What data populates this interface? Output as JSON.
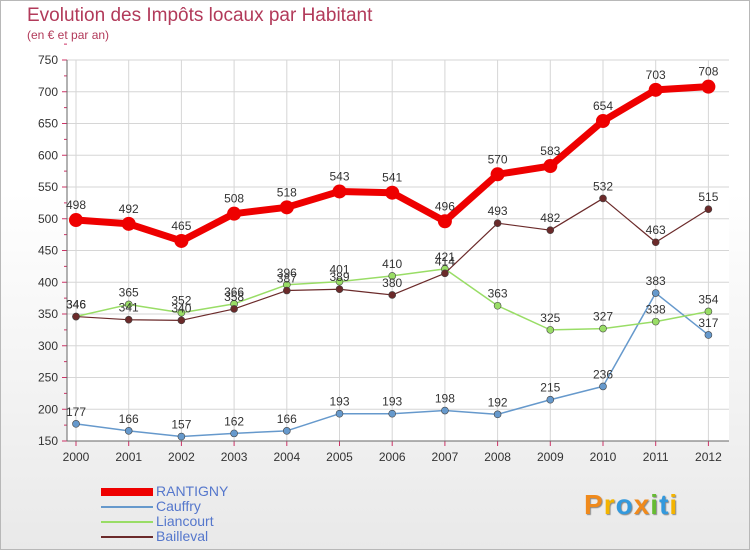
{
  "chart_data": {
    "type": "line",
    "title": "Evolution des Impôts locaux par Habitant",
    "subtitle": "(en € et par an)",
    "xlabel": "",
    "ylabel": "",
    "ylim": [
      150,
      750
    ],
    "yticks": [
      150,
      200,
      250,
      300,
      350,
      400,
      450,
      500,
      550,
      600,
      650,
      700,
      750
    ],
    "x": [
      "2000",
      "2001",
      "2002",
      "2003",
      "2004",
      "2005",
      "2006",
      "2007",
      "2008",
      "2009",
      "2010",
      "2011",
      "2012"
    ],
    "grid": true,
    "legend": "bottom-left",
    "series": [
      {
        "name": "RANTIGNY",
        "color": "#ee0000",
        "values": [
          498,
          492,
          465,
          508,
          518,
          543,
          541,
          496,
          570,
          583,
          654,
          703,
          708
        ]
      },
      {
        "name": "Cauffry",
        "color": "#6699cc",
        "values": [
          177,
          166,
          157,
          162,
          166,
          193,
          193,
          198,
          192,
          215,
          236,
          383,
          317
        ]
      },
      {
        "name": "Liancourt",
        "color": "#99dd66",
        "values": [
          346,
          365,
          352,
          366,
          396,
          401,
          410,
          421,
          363,
          325,
          327,
          338,
          354
        ]
      },
      {
        "name": "Bailleval",
        "color": "#6b2a2a",
        "values": [
          346,
          341,
          340,
          358,
          387,
          389,
          380,
          414,
          493,
          482,
          532,
          463,
          515
        ]
      }
    ]
  },
  "brand": {
    "name": "Proxiti",
    "letters": [
      "P",
      "r",
      "o",
      "x",
      "i",
      "t",
      "i"
    ],
    "letter_colors": [
      "#f08a1c",
      "#f4b400",
      "#3399dd",
      "#f08a1c",
      "#66bb33",
      "#3399dd",
      "#f4b400"
    ]
  }
}
